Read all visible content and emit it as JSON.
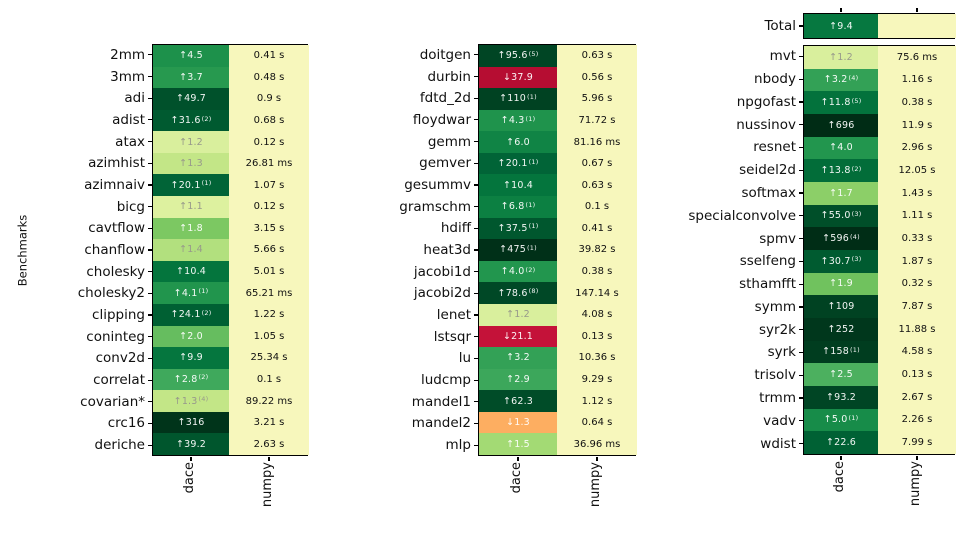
{
  "chart_data": {
    "type": "heatmap",
    "title": "",
    "ylabel": "Benchmarks",
    "columns": [
      "dace",
      "numpy"
    ],
    "legend_position": "none",
    "grid": false,
    "colors": {
      "numpy_cell": "#f7f7bc",
      "border": "#000000",
      "background": "#ffffff",
      "speedup_down_red": "#b60d32",
      "speedup_down_orange": "#fdae61"
    },
    "total": {
      "label": "Total",
      "dir": "up",
      "speedup": "9.4",
      "sup": "",
      "color": "#067840",
      "time": ""
    },
    "charts": [
      {
        "rows": [
          {
            "name": "2mm",
            "dir": "up",
            "speedup": "4.5",
            "sup": "",
            "color": "#1d914b",
            "time": "0.41 s"
          },
          {
            "name": "3mm",
            "dir": "up",
            "speedup": "3.7",
            "sup": "",
            "color": "#27994f",
            "time": "0.48 s"
          },
          {
            "name": "adi",
            "dir": "up",
            "speedup": "49.7",
            "sup": "",
            "color": "#00512b",
            "time": "0.9 s"
          },
          {
            "name": "adist",
            "dir": "up",
            "speedup": "31.6",
            "sup": "2",
            "color": "#005a30",
            "time": "0.68 s"
          },
          {
            "name": "atax",
            "dir": "up",
            "speedup": "1.2",
            "sup": "",
            "color": "#d9ef9d",
            "time": "0.12 s"
          },
          {
            "name": "azimhist",
            "dir": "up",
            "speedup": "1.3",
            "sup": "",
            "color": "#c3e687",
            "time": "26.81 ms"
          },
          {
            "name": "azimnaiv",
            "dir": "up",
            "speedup": "20.1",
            "sup": "1",
            "color": "#016437",
            "time": "1.07 s"
          },
          {
            "name": "bicg",
            "dir": "up",
            "speedup": "1.1",
            "sup": "",
            "color": "#ddf19f",
            "time": "0.12 s"
          },
          {
            "name": "cavtflow",
            "dir": "up",
            "speedup": "1.8",
            "sup": "",
            "color": "#7cc862",
            "time": "3.15 s"
          },
          {
            "name": "chanflow",
            "dir": "up",
            "speedup": "1.4",
            "sup": "",
            "color": "#b2e07e",
            "time": "5.66 s"
          },
          {
            "name": "cholesky",
            "dir": "up",
            "speedup": "10.4",
            "sup": "",
            "color": "#04753d",
            "time": "5.01 s"
          },
          {
            "name": "cholesky2",
            "dir": "up",
            "speedup": "4.1",
            "sup": "1",
            "color": "#21954d",
            "time": "65.21 ms"
          },
          {
            "name": "clipping",
            "dir": "up",
            "speedup": "24.1",
            "sup": "2",
            "color": "#006033",
            "time": "1.22 s"
          },
          {
            "name": "coninteg",
            "dir": "up",
            "speedup": "2.0",
            "sup": "",
            "color": "#66bd5f",
            "time": "1.05 s"
          },
          {
            "name": "conv2d",
            "dir": "up",
            "speedup": "9.9",
            "sup": "",
            "color": "#05763e",
            "time": "25.34 s"
          },
          {
            "name": "correlat",
            "dir": "up",
            "speedup": "2.8",
            "sup": "2",
            "color": "#3fa95c",
            "time": "0.1 s"
          },
          {
            "name": "covarian*",
            "dir": "up",
            "speedup": "1.3",
            "sup": "4",
            "color": "#c3e687",
            "time": "89.22 ms"
          },
          {
            "name": "crc16",
            "dir": "up",
            "speedup": "316",
            "sup": "",
            "color": "#00341a",
            "time": "3.21 s"
          },
          {
            "name": "deriche",
            "dir": "up",
            "speedup": "39.2",
            "sup": "",
            "color": "#00562d",
            "time": "2.63 s"
          }
        ]
      },
      {
        "rows": [
          {
            "name": "doitgen",
            "dir": "up",
            "speedup": "95.6",
            "sup": "5",
            "color": "#004524",
            "time": "0.63 s"
          },
          {
            "name": "durbin",
            "dir": "down",
            "speedup": "37.9",
            "sup": "",
            "color": "#b60d32",
            "time": "0.56 s"
          },
          {
            "name": "fdtd_2d",
            "dir": "up",
            "speedup": "110",
            "sup": "1",
            "color": "#004222",
            "time": "5.96 s"
          },
          {
            "name": "floydwar",
            "dir": "up",
            "speedup": "4.3",
            "sup": "1",
            "color": "#1f934c",
            "time": "71.72 s"
          },
          {
            "name": "gemm",
            "dir": "up",
            "speedup": "6.0",
            "sup": "",
            "color": "#108445",
            "time": "81.16 ms"
          },
          {
            "name": "gemver",
            "dir": "up",
            "speedup": "20.1",
            "sup": "1",
            "color": "#016437",
            "time": "0.67 s"
          },
          {
            "name": "gesummv",
            "dir": "up",
            "speedup": "10.4",
            "sup": "",
            "color": "#04753d",
            "time": "0.63 s"
          },
          {
            "name": "gramschm",
            "dir": "up",
            "speedup": "6.8",
            "sup": "1",
            "color": "#0c8042",
            "time": "0.1 s"
          },
          {
            "name": "hdiff",
            "dir": "up",
            "speedup": "37.5",
            "sup": "1",
            "color": "#00572e",
            "time": "0.41 s"
          },
          {
            "name": "heat3d",
            "dir": "up",
            "speedup": "475",
            "sup": "1",
            "color": "#003018",
            "time": "39.82 s"
          },
          {
            "name": "jacobi1d",
            "dir": "up",
            "speedup": "4.0",
            "sup": "2",
            "color": "#22964e",
            "time": "0.38 s"
          },
          {
            "name": "jacobi2d",
            "dir": "up",
            "speedup": "78.6",
            "sup": "8",
            "color": "#004826",
            "time": "147.14 s"
          },
          {
            "name": "lenet",
            "dir": "up",
            "speedup": "1.2",
            "sup": "",
            "color": "#d9ef9d",
            "time": "4.08 s"
          },
          {
            "name": "lstsqr",
            "dir": "down",
            "speedup": "21.1",
            "sup": "",
            "color": "#c41239",
            "time": "0.13 s"
          },
          {
            "name": "lu",
            "dir": "up",
            "speedup": "3.2",
            "sup": "",
            "color": "#33a156",
            "time": "10.36 s"
          },
          {
            "name": "ludcmp",
            "dir": "up",
            "speedup": "2.9",
            "sup": "",
            "color": "#3ca75b",
            "time": "9.29 s"
          },
          {
            "name": "mandel1",
            "dir": "up",
            "speedup": "62.3",
            "sup": "",
            "color": "#004c28",
            "time": "1.12 s"
          },
          {
            "name": "mandel2",
            "dir": "down",
            "speedup": "1.3",
            "sup": "",
            "color": "#fdae61",
            "time": "0.64 s"
          },
          {
            "name": "mlp",
            "dir": "up",
            "speedup": "1.5",
            "sup": "",
            "color": "#a3da74",
            "time": "36.96 ms"
          }
        ]
      },
      {
        "rows": [
          {
            "name": "mvt",
            "dir": "up",
            "speedup": "1.2",
            "sup": "",
            "color": "#d9ef9d",
            "time": "75.6 ms"
          },
          {
            "name": "nbody",
            "dir": "up",
            "speedup": "3.2",
            "sup": "4",
            "color": "#33a156",
            "time": "1.16 s"
          },
          {
            "name": "npgofast",
            "dir": "up",
            "speedup": "11.8",
            "sup": "5",
            "color": "#03723c",
            "time": "0.38 s"
          },
          {
            "name": "nussinov",
            "dir": "up",
            "speedup": "696",
            "sup": "",
            "color": "#002c15",
            "time": "11.9 s"
          },
          {
            "name": "resnet",
            "dir": "up",
            "speedup": "4.0",
            "sup": "",
            "color": "#22964e",
            "time": "2.96 s"
          },
          {
            "name": "seidel2d",
            "dir": "up",
            "speedup": "13.8",
            "sup": "2",
            "color": "#026d39",
            "time": "12.05 s"
          },
          {
            "name": "softmax",
            "dir": "up",
            "speedup": "1.7",
            "sup": "",
            "color": "#8ccf68",
            "time": "1.43 s"
          },
          {
            "name": "specialconvolve",
            "dir": "up",
            "speedup": "55.0",
            "sup": "3",
            "color": "#004f29",
            "time": "1.11 s"
          },
          {
            "name": "spmv",
            "dir": "up",
            "speedup": "596",
            "sup": "4",
            "color": "#002d16",
            "time": "0.33 s"
          },
          {
            "name": "sselfeng",
            "dir": "up",
            "speedup": "30.7",
            "sup": "3",
            "color": "#005b30",
            "time": "1.87 s"
          },
          {
            "name": "sthamfft",
            "dir": "up",
            "speedup": "1.9",
            "sup": "",
            "color": "#70c25e",
            "time": "0.32 s"
          },
          {
            "name": "symm",
            "dir": "up",
            "speedup": "109",
            "sup": "",
            "color": "#004222",
            "time": "7.87 s"
          },
          {
            "name": "syr2k",
            "dir": "up",
            "speedup": "252",
            "sup": "",
            "color": "#00371c",
            "time": "11.88 s"
          },
          {
            "name": "syrk",
            "dir": "up",
            "speedup": "158",
            "sup": "1",
            "color": "#003d1f",
            "time": "4.58 s"
          },
          {
            "name": "trisolv",
            "dir": "up",
            "speedup": "2.5",
            "sup": "",
            "color": "#4cb05f",
            "time": "0.13 s"
          },
          {
            "name": "trmm",
            "dir": "up",
            "speedup": "93.2",
            "sup": "",
            "color": "#004524",
            "time": "2.67 s"
          },
          {
            "name": "vadv",
            "dir": "up",
            "speedup": "5.0",
            "sup": "1",
            "color": "#178c49",
            "time": "2.26 s"
          },
          {
            "name": "wdist",
            "dir": "up",
            "speedup": "22.6",
            "sup": "",
            "color": "#006134",
            "time": "7.99 s"
          }
        ]
      }
    ]
  }
}
